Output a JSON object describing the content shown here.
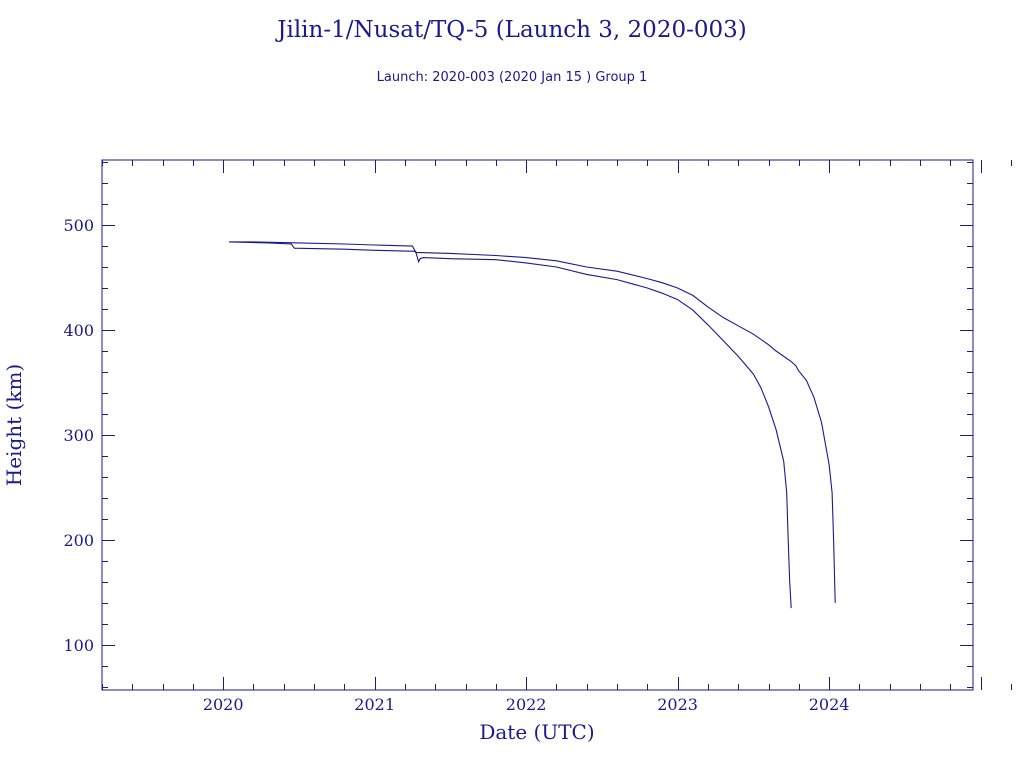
{
  "chart_data": {
    "type": "line",
    "title": "Jilin-1/Nusat/TQ-5 (Launch 3, 2020-003)",
    "subtitle": "Launch: 2020-003  (2020 Jan 15 )  Group 1",
    "xlabel": "Date (UTC)",
    "ylabel": "Height (km)",
    "xlim": [
      2019.2,
      2024.95
    ],
    "ylim": [
      57,
      562
    ],
    "x_ticks": [
      2020,
      2021,
      2022,
      2023,
      2024
    ],
    "x_tick_labels": [
      "2020",
      "2021",
      "2022",
      "2023",
      "2024"
    ],
    "y_ticks": [
      100,
      200,
      300,
      400,
      500
    ],
    "y_tick_labels": [
      "100",
      "200",
      "300",
      "400",
      "500"
    ],
    "grid": false,
    "line_color": "#1a1a8c",
    "series": [
      {
        "x": [
          2020.04,
          2020.2,
          2020.5,
          2020.8,
          2021.0,
          2021.25,
          2021.27,
          2021.5,
          2021.8,
          2022.0,
          2022.2,
          2022.4,
          2022.6,
          2022.8,
          2022.9,
          2023.0,
          2023.1,
          2023.2,
          2023.3,
          2023.4,
          2023.5,
          2023.6,
          2023.65,
          2023.75,
          2023.78,
          2023.8,
          2023.85,
          2023.9,
          2023.95,
          2024.0,
          2024.02,
          2024.03,
          2024.04
        ],
        "y": [
          484,
          484,
          483,
          482,
          481,
          480,
          474,
          473,
          471,
          469,
          466,
          460,
          456,
          449,
          445,
          440,
          433,
          422,
          412,
          404,
          396,
          386,
          380,
          370,
          366,
          361,
          352,
          336,
          312,
          272,
          245,
          200,
          140
        ]
      },
      {
        "x": [
          2020.04,
          2020.3,
          2020.45,
          2020.47,
          2020.8,
          2021.0,
          2021.27,
          2021.29,
          2021.3,
          2021.32,
          2021.5,
          2021.8,
          2022.0,
          2022.2,
          2022.4,
          2022.6,
          2022.8,
          2022.9,
          2023.0,
          2023.1,
          2023.2,
          2023.3,
          2023.4,
          2023.5,
          2023.55,
          2023.6,
          2023.65,
          2023.7,
          2023.72,
          2023.73,
          2023.74,
          2023.75
        ],
        "y": [
          484,
          483,
          482,
          478,
          477,
          476,
          475,
          465,
          468,
          469,
          468,
          467,
          464,
          460,
          453,
          448,
          440,
          435,
          429,
          419,
          405,
          390,
          375,
          358,
          345,
          327,
          305,
          275,
          245,
          200,
          160,
          135
        ]
      }
    ]
  }
}
